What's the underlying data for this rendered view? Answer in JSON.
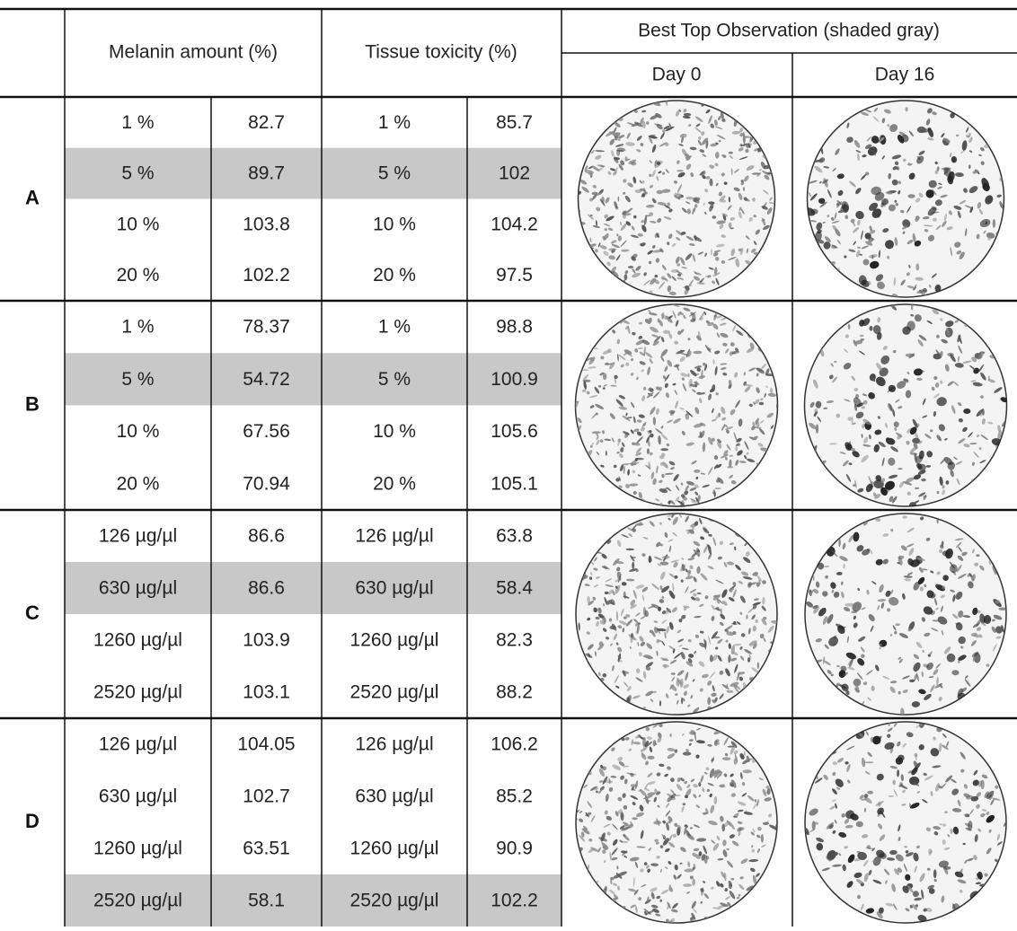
{
  "header": {
    "melanin": "Melanin amount (%)",
    "toxicity": "Tissue toxicity (%)",
    "observation": "Best Top Observation (shaded gray)",
    "day0": "Day 0",
    "day16": "Day 16"
  },
  "groups": [
    {
      "label": "A",
      "shaded_row": 1,
      "rows": [
        [
          "1 %",
          "82.7",
          "1 %",
          "85.7"
        ],
        [
          "5 %",
          "89.7",
          "5 %",
          "102"
        ],
        [
          "10 %",
          "103.8",
          "10 %",
          "104.2"
        ],
        [
          "20 %",
          "102.2",
          "20 %",
          "97.5"
        ]
      ]
    },
    {
      "label": "B",
      "shaded_row": 1,
      "rows": [
        [
          "1 %",
          "78.37",
          "1 %",
          "98.8"
        ],
        [
          "5 %",
          "54.72",
          "5 %",
          "100.9"
        ],
        [
          "10 %",
          "67.56",
          "10 %",
          "105.6"
        ],
        [
          "20 %",
          "70.94",
          "20 %",
          "105.1"
        ]
      ]
    },
    {
      "label": "C",
      "shaded_row": 1,
      "rows": [
        [
          "126 µg/µl",
          "86.6",
          "126 µg/µl",
          "63.8"
        ],
        [
          "630 µg/µl",
          "86.6",
          "630 µg/µl",
          "58.4"
        ],
        [
          "1260 µg/µl",
          "103.9",
          "1260 µg/µl",
          "82.3"
        ],
        [
          "2520 µg/µl",
          "103.1",
          "2520 µg/µl",
          "88.2"
        ]
      ]
    },
    {
      "label": "D",
      "shaded_row": 3,
      "rows": [
        [
          "126 µg/µl",
          "104.05",
          "126 µg/µl",
          "106.2"
        ],
        [
          "630 µg/µl",
          "102.7",
          "630 µg/µl",
          "85.2"
        ],
        [
          "1260 µg/µl",
          "63.51",
          "1260 µg/µl",
          "90.9"
        ],
        [
          "2520 µg/µl",
          "58.1",
          "2520 µg/µl",
          "102.2"
        ]
      ]
    }
  ]
}
